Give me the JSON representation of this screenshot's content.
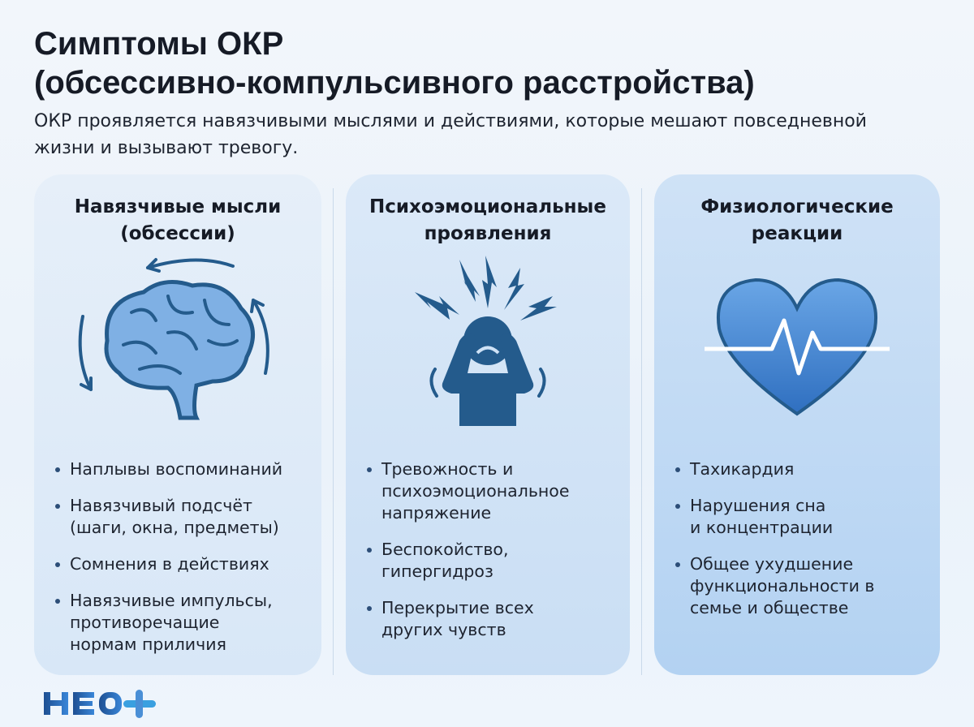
{
  "title": {
    "line1": "Симптомы ОКР",
    "line2": "(обсессивно-компульсивного расстройства)"
  },
  "subtitle": "ОКР проявляется навязчивыми мыслями и действиями, которые мешают повседневной жизни и вызывают тревогу.",
  "cards": [
    {
      "heading1": "Навязчивые мысли",
      "heading2": "(обсессии)",
      "icon": "brain-with-cycle-arrows-icon",
      "items": [
        "Наплывы воспоминаний",
        "Навязчивый подсчёт (шаги, окна, предметы)",
        "Сомнения в действиях",
        "Навязчивые импульсы, противоречащие нормам приличия"
      ]
    },
    {
      "heading1": "Психоэмоциональные",
      "heading2": "проявления",
      "icon": "stressed-person-icon",
      "items": [
        "Тревожность и психоэмоциональное напряжение",
        "Беспокойство, гипергидроз",
        "Перекрытие всех других чувств"
      ]
    },
    {
      "heading1": "Физиологические",
      "heading2": "реакции",
      "icon": "heart-pulse-icon",
      "items": [
        "Тахикардия",
        "Нарушения сна и концентрации",
        "Общее ухудшение функциональности в семье и обществе"
      ]
    }
  ],
  "logo": "НЕО+",
  "colors": {
    "icon": "#245b8c",
    "heart": "#3f7fcf",
    "bullet": "#2c4e78",
    "accent": "#2f6fb6"
  }
}
